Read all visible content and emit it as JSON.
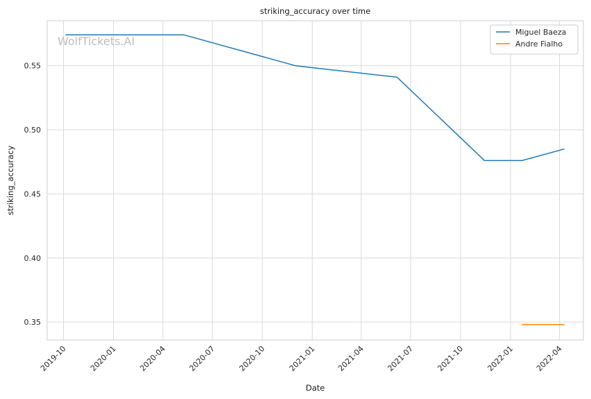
{
  "watermark": "WolfTickets.AI",
  "chart_data": {
    "type": "line",
    "title": "striking_accuracy over time",
    "xlabel": "Date",
    "ylabel": "striking_accuracy",
    "x_tick_labels": [
      "2019-10",
      "2020-01",
      "2020-04",
      "2020-07",
      "2020-10",
      "2021-01",
      "2021-04",
      "2021-07",
      "2021-10",
      "2022-01",
      "2022-04"
    ],
    "y_ticks": [
      0.35,
      0.4,
      0.45,
      0.5,
      0.55
    ],
    "y_tick_labels": [
      "0.35",
      "0.40",
      "0.45",
      "0.50",
      "0.55"
    ],
    "xlim": [
      "2019-09-01",
      "2022-05-15"
    ],
    "ylim": [
      0.336,
      0.585
    ],
    "grid": true,
    "legend_position": "top-right",
    "series": [
      {
        "name": "Miguel Baeza",
        "color": "#1f77b4",
        "x": [
          "2019-10-05",
          "2020-05-10",
          "2020-12-01",
          "2021-06-06",
          "2021-11-14",
          "2022-01-22",
          "2022-04-10"
        ],
        "y": [
          0.574,
          0.574,
          0.55,
          0.541,
          0.476,
          0.476,
          0.485
        ]
      },
      {
        "name": "Andre Fialho",
        "color": "#ff7f0e",
        "x": [
          "2022-01-22",
          "2022-04-10"
        ],
        "y": [
          0.348,
          0.348
        ]
      }
    ]
  }
}
